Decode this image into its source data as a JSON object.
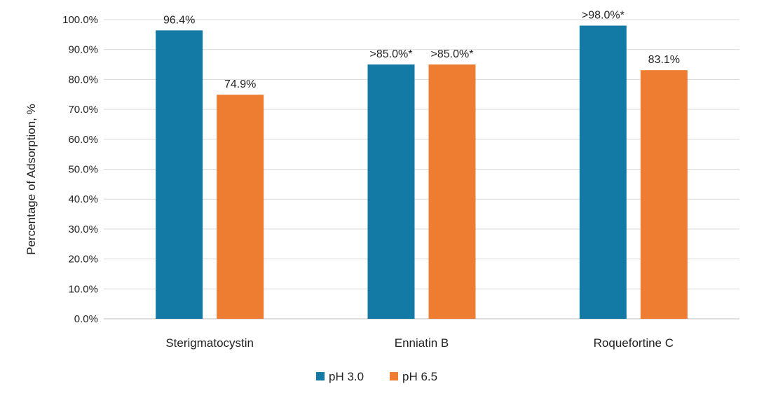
{
  "chart_data": {
    "type": "bar",
    "title": "",
    "xlabel": "",
    "ylabel": "Percentage of Adsorption, %",
    "ylim": [
      0,
      100
    ],
    "yticks": [
      "0.0%",
      "10.0%",
      "20.0%",
      "30.0%",
      "40.0%",
      "50.0%",
      "60.0%",
      "70.0%",
      "80.0%",
      "90.0%",
      "100.0%"
    ],
    "grid": true,
    "legend_position": "bottom",
    "categories": [
      "Sterigmatocystin",
      "Enniatin B",
      "Roquefortine C"
    ],
    "series": [
      {
        "name": "pH 3.0",
        "color": "#1379a5",
        "values": [
          96.4,
          85.0,
          98.0
        ],
        "labels": [
          "96.4%",
          ">85.0%*",
          ">98.0%*"
        ]
      },
      {
        "name": "pH 6.5",
        "color": "#ee7d31",
        "values": [
          74.9,
          85.0,
          83.1
        ],
        "labels": [
          "74.9%",
          ">85.0%*",
          "83.1%"
        ]
      }
    ]
  }
}
